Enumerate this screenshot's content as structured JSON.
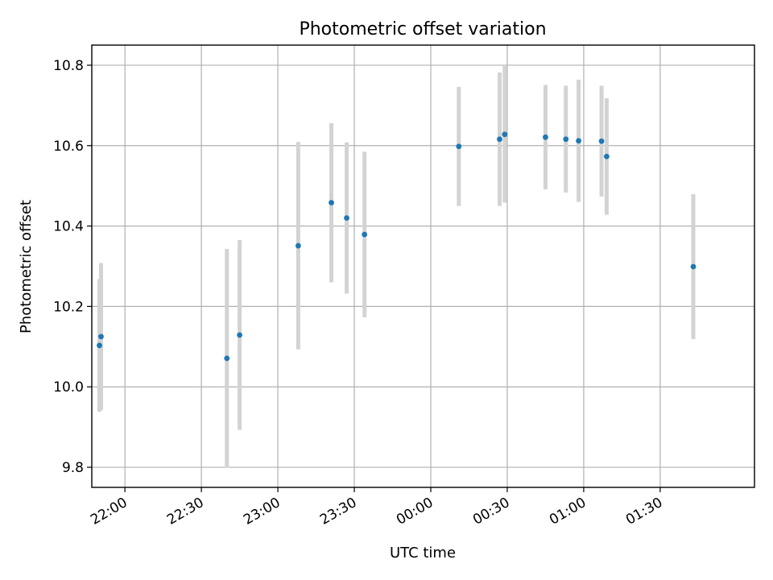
{
  "chart_data": {
    "type": "scatter",
    "title": "Photometric offset variation",
    "xlabel": "UTC time",
    "ylabel": "Photometric offset",
    "x_axis_kind": "time",
    "xlim": [
      "21:47",
      "02:07"
    ],
    "ylim": [
      9.75,
      10.85
    ],
    "x_ticks": [
      "22:00",
      "22:30",
      "23:00",
      "23:30",
      "00:00",
      "00:30",
      "01:00",
      "01:30"
    ],
    "y_ticks": [
      "9.8",
      "10.0",
      "10.2",
      "10.4",
      "10.6",
      "10.8"
    ],
    "grid": true,
    "point_color": "#1f77b4",
    "errorbar_color": "#d3d3d3",
    "points": [
      {
        "x": "21:50",
        "y": 10.103,
        "err": 0.165
      },
      {
        "x": "21:50",
        "y": 10.125,
        "err": 0.183
      },
      {
        "x": "22:40",
        "y": 10.071,
        "err": 0.272
      },
      {
        "x": "22:45",
        "y": 10.129,
        "err": 0.236
      },
      {
        "x": "23:08",
        "y": 10.351,
        "err": 0.258
      },
      {
        "x": "23:21",
        "y": 10.458,
        "err": 0.198
      },
      {
        "x": "23:27",
        "y": 10.42,
        "err": 0.188
      },
      {
        "x": "23:34",
        "y": 10.379,
        "err": 0.206
      },
      {
        "x": "00:11",
        "y": 10.598,
        "err": 0.148
      },
      {
        "x": "00:27",
        "y": 10.616,
        "err": 0.166
      },
      {
        "x": "00:29",
        "y": 10.628,
        "err": 0.17
      },
      {
        "x": "00:45",
        "y": 10.621,
        "err": 0.13
      },
      {
        "x": "00:53",
        "y": 10.616,
        "err": 0.133
      },
      {
        "x": "00:58",
        "y": 10.612,
        "err": 0.152
      },
      {
        "x": "01:07",
        "y": 10.611,
        "err": 0.138
      },
      {
        "x": "01:09",
        "y": 10.573,
        "err": 0.145
      },
      {
        "x": "01:43",
        "y": 10.299,
        "err": 0.18
      }
    ]
  }
}
